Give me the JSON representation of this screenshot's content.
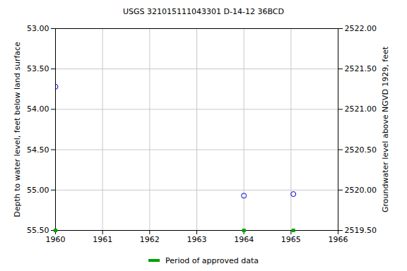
{
  "chart_data": {
    "type": "scatter",
    "title": "USGS 321015111043301 D-14-12 36BCD",
    "x_label": null,
    "y_label": "Depth to water level, feet below land surface",
    "y2_label": "Groundwater level above NGVD 1929, feet",
    "x": [
      1960.0,
      1964.0,
      1965.05
    ],
    "values": [
      53.72,
      55.07,
      55.05
    ],
    "color": "#0000cc",
    "marker": "circle",
    "approved_periods": {
      "label": "Period of approved data",
      "color": "#00a000",
      "x": [
        1960.0,
        1964.0,
        1965.05
      ]
    },
    "xlim": [
      1960,
      1966
    ],
    "xticks": [
      1960,
      1961,
      1962,
      1963,
      1964,
      1965,
      1966
    ],
    "ylim": [
      53.0,
      55.5
    ],
    "yticks": [
      {
        "value": 53.0,
        "label": "53.00"
      },
      {
        "value": 53.5,
        "label": "53.50"
      },
      {
        "value": 54.0,
        "label": "54.00"
      },
      {
        "value": 54.5,
        "label": "54.50"
      },
      {
        "value": 55.0,
        "label": "55.00"
      },
      {
        "value": 55.5,
        "label": "55.50"
      }
    ],
    "y2lim": [
      2519.5,
      2522.0
    ],
    "y2ticks": [
      {
        "value": 2522.0,
        "label": "2522.00"
      },
      {
        "value": 2521.5,
        "label": "2521.50"
      },
      {
        "value": 2521.0,
        "label": "2521.00"
      },
      {
        "value": 2520.5,
        "label": "2520.50"
      },
      {
        "value": 2520.0,
        "label": "2520.00"
      },
      {
        "value": 2519.5,
        "label": "2519.50"
      }
    ],
    "grid": true
  }
}
